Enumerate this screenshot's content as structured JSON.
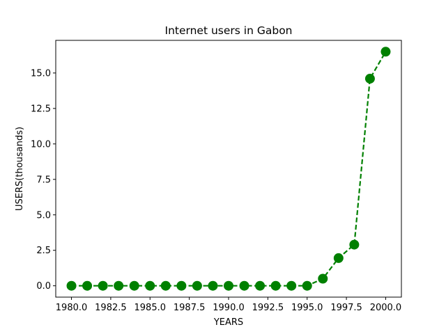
{
  "chart_data": {
    "type": "line",
    "title": "Internet users in Gabon",
    "xlabel": "YEARS",
    "ylabel": "USERS(thousands)",
    "x": [
      1980,
      1981,
      1982,
      1983,
      1984,
      1985,
      1986,
      1987,
      1988,
      1989,
      1990,
      1991,
      1992,
      1993,
      1994,
      1995,
      1996,
      1997,
      1998,
      1999,
      2000
    ],
    "series": [
      {
        "values": [
          0,
          0,
          0,
          0,
          0,
          0,
          0,
          0,
          0,
          0,
          0,
          0,
          0,
          0,
          0,
          0,
          0.5,
          1.95,
          2.9,
          14.6,
          16.5
        ],
        "color": "#008000",
        "line_style": "dashed",
        "marker": "circle"
      }
    ],
    "xlim": [
      1979.0,
      2001.0
    ],
    "ylim": [
      -0.8,
      17.3
    ],
    "xticks": [
      1980.0,
      1982.5,
      1985.0,
      1987.5,
      1990.0,
      1992.5,
      1995.0,
      1997.5,
      2000.0
    ],
    "xtick_labels": [
      "1980.0",
      "1982.5",
      "1985.0",
      "1987.5",
      "1990.0",
      "1992.5",
      "1995.0",
      "1997.5",
      "2000.0"
    ],
    "yticks": [
      0.0,
      2.5,
      5.0,
      7.5,
      10.0,
      12.5,
      15.0
    ],
    "ytick_labels": [
      "0.0",
      "2.5",
      "5.0",
      "7.5",
      "10.0",
      "12.5",
      "15.0"
    ],
    "grid": false,
    "legend": false
  }
}
